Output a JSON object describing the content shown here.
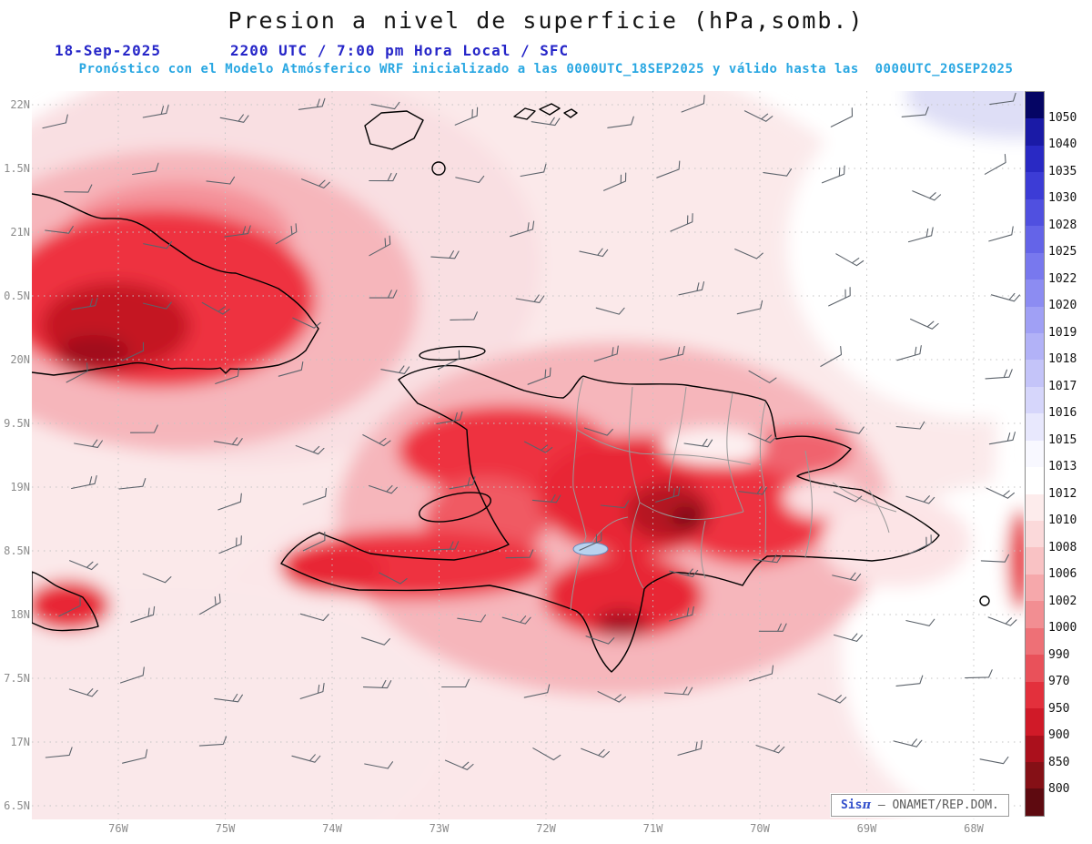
{
  "header": {
    "title": "Presion a nivel de superficie (hPa,somb.)",
    "date": "18-Sep-2025",
    "time": "2200 UTC / 7:00 pm Hora Local / SFC",
    "forecast": "Pronóstico con el Modelo Atmósferico WRF inicializado a las 0000UTC_18SEP2025 y válido hasta las  0000UTC_20SEP2025"
  },
  "map": {
    "lat_labels": [
      "22N",
      "1.5N",
      "21N",
      "0.5N",
      "20N",
      "9.5N",
      "19N",
      "8.5N",
      "18N",
      "7.5N",
      "17N",
      "6.5N"
    ],
    "lon_labels": [
      "76W",
      "75W",
      "74W",
      "73W",
      "72W",
      "71W",
      "70W",
      "69W",
      "68W"
    ]
  },
  "colorbar": {
    "unit": "hPa",
    "labels": [
      "1050",
      "1040",
      "1035",
      "1030",
      "1028",
      "1025",
      "1022",
      "1020",
      "1019",
      "1018",
      "1017",
      "1016",
      "1015",
      "1013",
      "1012",
      "1010",
      "1008",
      "1006",
      "1002",
      "1000",
      "990",
      "970",
      "950",
      "900",
      "850",
      "800"
    ],
    "colors": [
      "#050564",
      "#1a1aa6",
      "#2929c4",
      "#3c3cd6",
      "#5050e0",
      "#6464e8",
      "#7878ee",
      "#8c8cf2",
      "#a0a0f5",
      "#b2b2f7",
      "#c4c4f9",
      "#d6d6fb",
      "#e8e8fd",
      "#f8f8ff",
      "#ffffff",
      "#fdecec",
      "#fbd9da",
      "#f9c2c4",
      "#f6a8ab",
      "#f28e92",
      "#ee7076",
      "#e9515a",
      "#e3303c",
      "#d01a28",
      "#ab101c",
      "#851016",
      "#5e0a10"
    ]
  },
  "credit": {
    "brand": "Sis",
    "pi": "π",
    "org": " – ONAMET/REP.DOM."
  }
}
